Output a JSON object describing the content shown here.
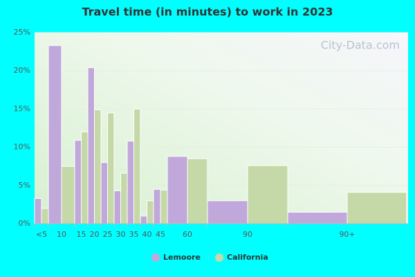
{
  "chart_data": {
    "type": "bar",
    "title": "Travel time (in minutes) to work in 2023",
    "watermark": "City-Data.com",
    "categories": [
      "<5",
      "10",
      "15",
      "20",
      "25",
      "30",
      "35",
      "40",
      "45",
      "60",
      "90",
      "90+"
    ],
    "series": [
      {
        "name": "Lemoore",
        "color": "#c0a8db",
        "values": [
          3.3,
          23.3,
          10.9,
          20.4,
          8.0,
          4.3,
          10.8,
          1.0,
          4.5,
          8.8,
          3.0,
          1.5
        ]
      },
      {
        "name": "California",
        "color": "#c5d9a8",
        "values": [
          2.0,
          7.5,
          12.0,
          14.9,
          14.5,
          6.6,
          15.0,
          3.0,
          4.4,
          8.5,
          7.6,
          4.1
        ]
      }
    ],
    "ylim": [
      0,
      25
    ],
    "yticks": [
      {
        "value": 0,
        "label": "0%"
      },
      {
        "value": 5,
        "label": "5%"
      },
      {
        "value": 10,
        "label": "10%"
      },
      {
        "value": 15,
        "label": "15%"
      },
      {
        "value": 20,
        "label": "20%"
      },
      {
        "value": 25,
        "label": "25%"
      }
    ],
    "grid": true
  }
}
